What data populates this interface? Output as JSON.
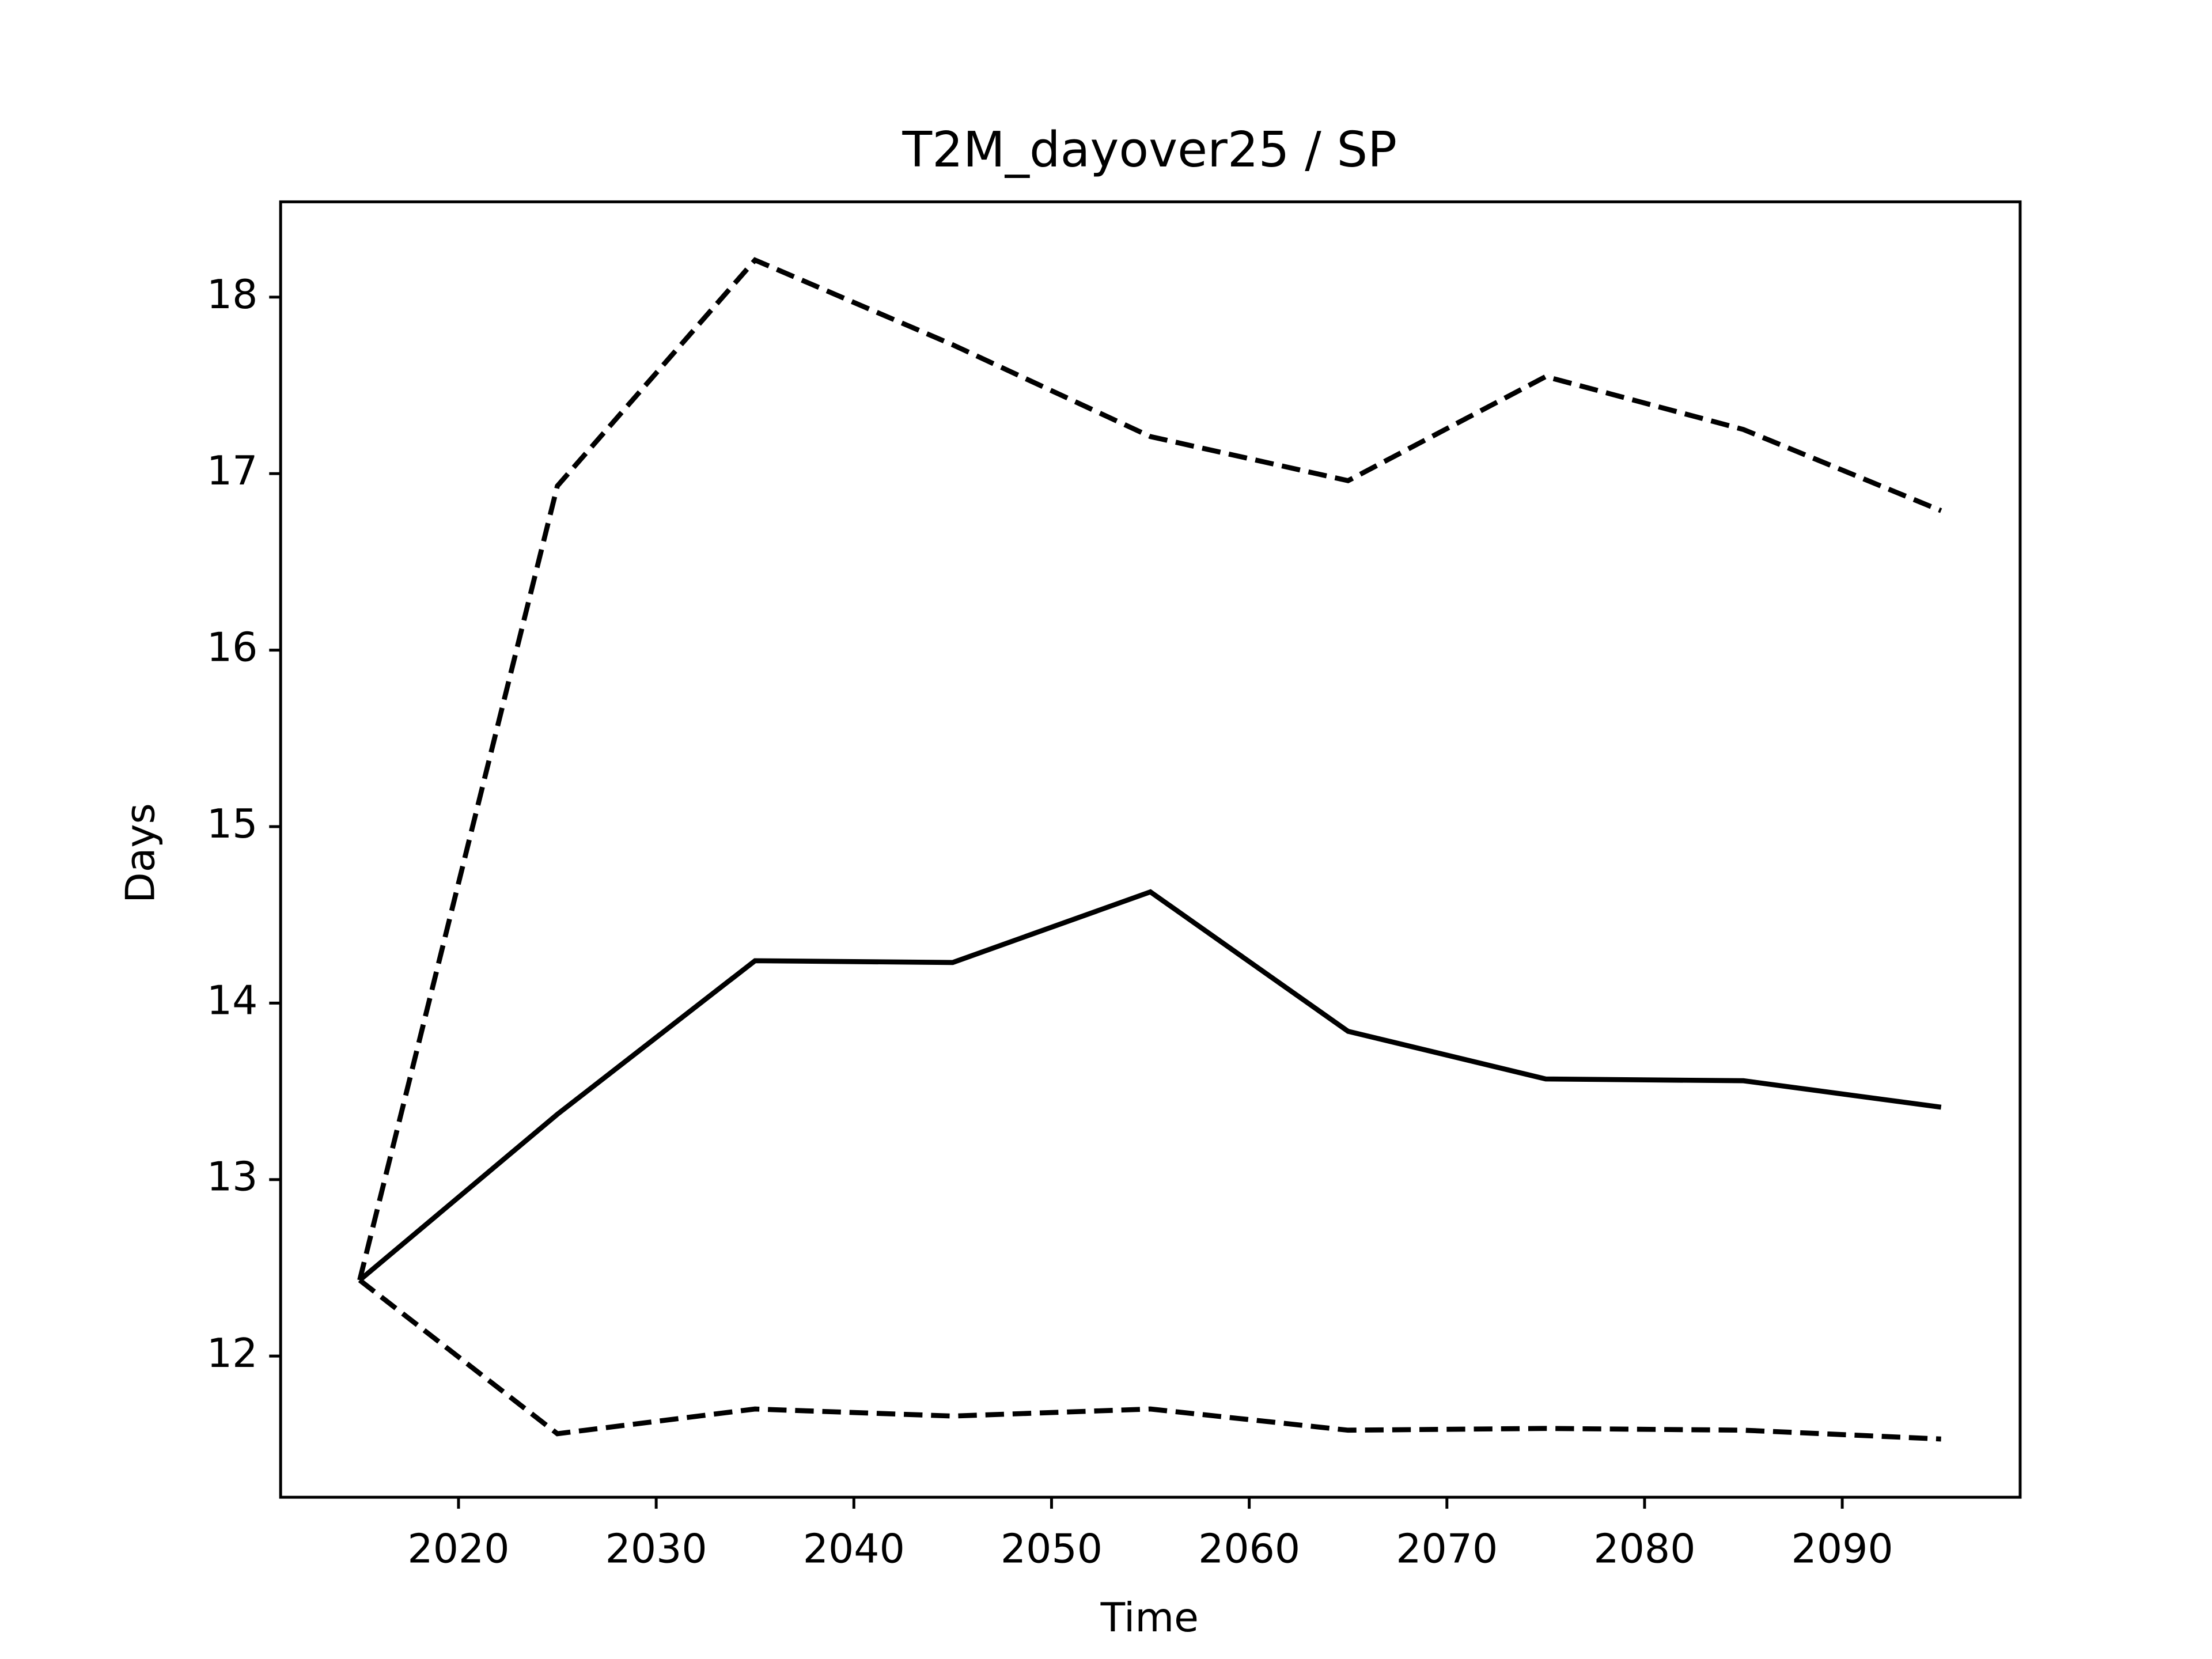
{
  "chart_data": {
    "type": "line",
    "title": "T2M_dayover25 / SP",
    "xlabel": "Time",
    "ylabel": "Days",
    "x": [
      2015,
      2025,
      2035,
      2045,
      2055,
      2065,
      2075,
      2085,
      2095
    ],
    "series": [
      {
        "color": "#000000",
        "linestyle": "solid",
        "values": [
          12.43,
          13.37,
          14.24,
          14.23,
          14.63,
          13.84,
          13.57,
          13.56,
          13.41
        ]
      },
      {
        "color": "#000000",
        "linestyle": "dashed",
        "values": [
          12.43,
          16.93,
          18.21,
          17.73,
          17.21,
          16.96,
          17.55,
          17.25,
          16.79
        ]
      },
      {
        "color": "#000000",
        "linestyle": "dashed",
        "values": [
          12.43,
          11.56,
          11.7,
          11.66,
          11.7,
          11.58,
          11.59,
          11.58,
          11.53
        ]
      }
    ],
    "xlim": [
      2011,
      2099
    ],
    "xticks": [
      2020,
      2030,
      2040,
      2050,
      2060,
      2070,
      2080,
      2090
    ],
    "ylim": [
      11.2,
      18.54
    ],
    "yticks": [
      12,
      13,
      14,
      15,
      16,
      17,
      18
    ],
    "grid": false
  }
}
